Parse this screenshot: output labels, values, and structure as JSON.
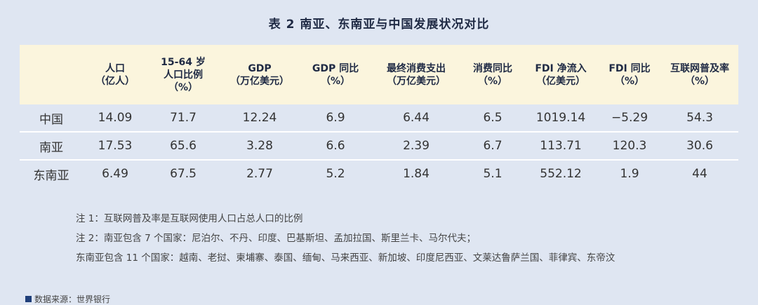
{
  "title": "表 2 南亚、东南亚与中国发展状况对比",
  "table": {
    "headers": [
      {
        "l1": "",
        "l2": "",
        "l3": ""
      },
      {
        "l1": "人口",
        "l2": "（亿人）",
        "l3": ""
      },
      {
        "l1": "15-64 岁",
        "l2": "人口比例",
        "l3": "（%）"
      },
      {
        "l1": "GDP",
        "l2": "（万亿美元）",
        "l3": ""
      },
      {
        "l1": "GDP 同比",
        "l2": "（%）",
        "l3": ""
      },
      {
        "l1": "最终消费支出",
        "l2": "（万亿美元）",
        "l3": ""
      },
      {
        "l1": "消费同比",
        "l2": "（%）",
        "l3": ""
      },
      {
        "l1": "FDI 净流入",
        "l2": "（亿美元）",
        "l3": ""
      },
      {
        "l1": "FDI 同比",
        "l2": "（%）",
        "l3": ""
      },
      {
        "l1": "互联网普及率",
        "l2": "（%）",
        "l3": ""
      }
    ],
    "rows": [
      [
        "中国",
        "14.09",
        "71.7",
        "12.24",
        "6.9",
        "6.44",
        "6.5",
        "1019.14",
        "−5.29",
        "54.3"
      ],
      [
        "南亚",
        "17.53",
        "65.6",
        "3.28",
        "6.6",
        "2.39",
        "6.7",
        "113.71",
        "120.3",
        "30.6"
      ],
      [
        "东南亚",
        "6.49",
        "67.5",
        "2.77",
        "5.2",
        "1.84",
        "5.1",
        "552.12",
        "1.9",
        "44"
      ]
    ]
  },
  "notes": [
    "注 1：互联网普及率是互联网使用人口占总人口的比例",
    "注 2：南亚包含 7 个国家：尼泊尔、不丹、印度、巴基斯坦、孟加拉国、斯里兰卡、马尔代夫；",
    "东南亚包含 11 个国家：越南、老挝、柬埔寨、泰国、缅甸、马来西亚、新加坡、印度尼西亚、文莱达鲁萨兰国、菲律宾、东帝汶"
  ],
  "source": "数据来源：世界银行"
}
